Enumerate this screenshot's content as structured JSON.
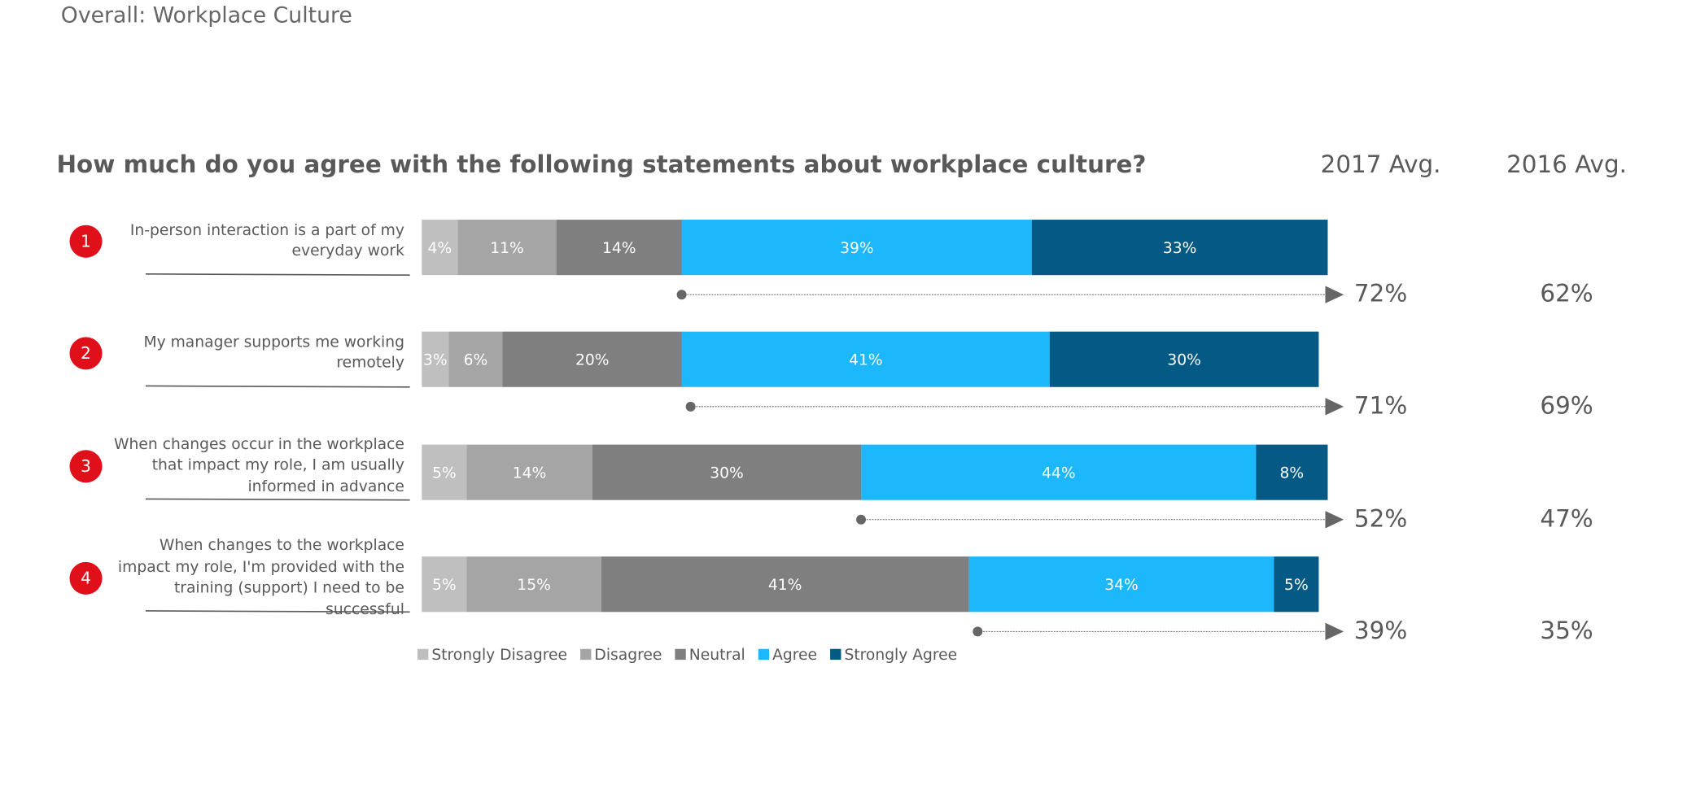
{
  "header": "Overall: Workplace Culture",
  "chart_data": {
    "type": "bar",
    "orientation": "horizontal",
    "stacked": true,
    "title": "How much do you agree with the following statements about workplace culture?",
    "categories": [
      "In-person interaction is a part of my everyday work",
      "My manager supports me working remotely",
      "When changes occur in the workplace that impact my role, I am usually informed in advance",
      "When changes to the workplace impact my role, I'm provided with the training (support) I need to be successful"
    ],
    "category_numbers": [
      1,
      2,
      3,
      4
    ],
    "series": [
      {
        "name": "Strongly Disagree",
        "color": "#bfbfbf",
        "values": [
          4,
          3,
          5,
          5
        ],
        "value_labels": [
          "4%",
          "3%",
          "5%",
          "5%"
        ]
      },
      {
        "name": "Disagree",
        "color": "#a5a5a5",
        "values": [
          11,
          6,
          14,
          15
        ],
        "value_labels": [
          "11%",
          "6%",
          "14%",
          "15%"
        ]
      },
      {
        "name": "Neutral",
        "color": "#7f7f7f",
        "values": [
          14,
          20,
          30,
          41
        ],
        "value_labels": [
          "14%",
          "20%",
          "30%",
          "41%"
        ]
      },
      {
        "name": "Agree",
        "color": "#1db7fb",
        "values": [
          39,
          41,
          44,
          34
        ],
        "value_labels": [
          "39%",
          "41%",
          "44%",
          "34%"
        ]
      },
      {
        "name": "Strongly Agree",
        "color": "#045a85",
        "values": [
          33,
          30,
          8,
          5
        ],
        "value_labels": [
          "33%",
          "30%",
          "8%",
          "5%"
        ]
      }
    ],
    "legend": "bottom-left",
    "avg_columns": [
      {
        "label": "2017 Avg.",
        "values": [
          72,
          71,
          52,
          39
        ],
        "value_labels": [
          "72%",
          "71%",
          "52%",
          "39%"
        ]
      },
      {
        "label": "2016 Avg.",
        "values": [
          62,
          69,
          47,
          35
        ],
        "value_labels": [
          "62%",
          "69%",
          "47%",
          "35%"
        ]
      }
    ]
  }
}
